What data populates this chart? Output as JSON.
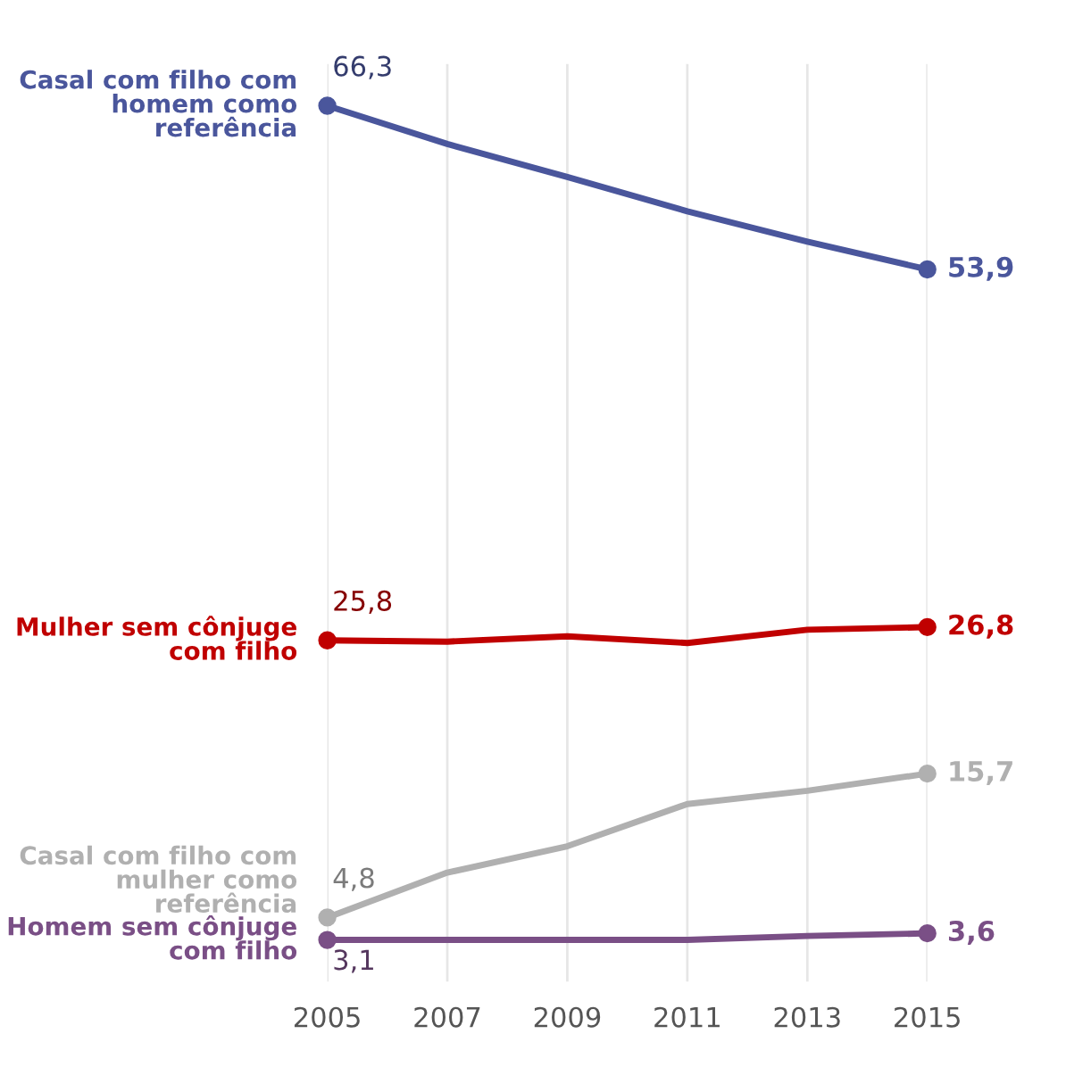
{
  "chart_data": {
    "type": "line",
    "x": [
      2005,
      2007,
      2009,
      2011,
      2013,
      2015
    ],
    "xlim": [
      2005,
      2015
    ],
    "xticks": [
      2005,
      2007,
      2009,
      2011,
      2013,
      2015
    ],
    "grid": "x",
    "line_style": "solid",
    "legend": false,
    "tick_labels": "x",
    "series": [
      {
        "name": "Casal com filho com homem como referência",
        "color": "#4a569c",
        "values": [
          66.3,
          63.4,
          60.9,
          58.3,
          56.0,
          53.9
        ],
        "value_labels": [
          "66,3",
          null,
          null,
          null,
          null,
          "53,9"
        ]
      },
      {
        "name": "Mulher sem cônjuge com filho",
        "color": "#c00000",
        "values": [
          25.8,
          25.7,
          26.1,
          25.6,
          26.6,
          26.8
        ],
        "value_labels": [
          "25,8",
          null,
          null,
          null,
          null,
          "26,8"
        ]
      },
      {
        "name": "Casal com filho com mulher como referência",
        "color": "#b0b0b0",
        "values": [
          4.8,
          8.2,
          10.2,
          13.4,
          14.4,
          15.7
        ],
        "value_labels": [
          "4,8",
          null,
          null,
          null,
          null,
          "15,7"
        ]
      },
      {
        "name": "Homem sem cônjuge com filho",
        "color": "#7a4f86",
        "values": [
          3.1,
          3.1,
          3.1,
          3.1,
          3.4,
          3.6
        ],
        "value_labels": [
          "3,1",
          null,
          null,
          null,
          null,
          "3,6"
        ]
      }
    ]
  }
}
